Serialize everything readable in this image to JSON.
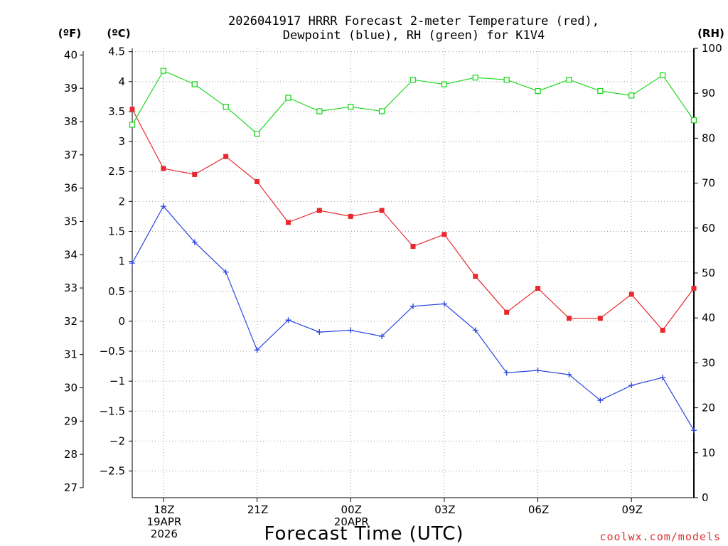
{
  "chart_data": {
    "type": "line",
    "title_line1": "2026041917 HRRR Forecast 2-meter Temperature (red),",
    "title_line2": "Dewpoint (blue), RH (green) for K1V4",
    "xlabel": "Forecast Time (UTC)",
    "credit": "coolwx.com/models",
    "units": {
      "left_f": "(ºF)",
      "left_c": "(ºC)",
      "right_rh": "(RH)"
    },
    "x_hours": [
      17,
      18,
      19,
      20,
      21,
      22,
      23,
      24,
      25,
      26,
      27,
      28,
      29,
      30,
      31,
      32,
      33,
      34,
      35
    ],
    "xlim": [
      17,
      35
    ],
    "x_ticks": [
      {
        "hour": 18,
        "lines": [
          "18Z",
          "19APR",
          "2026"
        ]
      },
      {
        "hour": 21,
        "lines": [
          "21Z"
        ]
      },
      {
        "hour": 24,
        "lines": [
          "00Z",
          "20APR"
        ]
      },
      {
        "hour": 27,
        "lines": [
          "03Z"
        ]
      },
      {
        "hour": 30,
        "lines": [
          "06Z"
        ]
      },
      {
        "hour": 33,
        "lines": [
          "09Z"
        ]
      }
    ],
    "ylim_c": [
      -2.9444,
      4.5556
    ],
    "y_ticks_c": [
      4.5,
      4,
      3.5,
      3,
      2.5,
      2,
      1.5,
      1,
      0.5,
      0,
      -0.5,
      -1,
      -1.5,
      -2,
      -2.5
    ],
    "y_ticks_f": [
      40,
      39,
      38,
      37,
      36,
      35,
      34,
      33,
      32,
      31,
      30,
      29,
      28,
      27
    ],
    "ylim_rh": [
      0,
      100
    ],
    "y_ticks_rh": [
      100,
      90,
      80,
      70,
      60,
      50,
      40,
      30,
      20,
      10,
      0
    ],
    "series": [
      {
        "name": "Temperature",
        "axis": "c",
        "color": "#e8282e",
        "marker": "filled-square",
        "values": [
          3.54,
          2.55,
          2.45,
          2.75,
          2.33,
          1.65,
          1.85,
          1.75,
          1.85,
          1.25,
          1.45,
          0.75,
          0.15,
          0.55,
          0.05,
          0.05,
          0.45,
          -0.15,
          0.55
        ]
      },
      {
        "name": "Dewpoint",
        "axis": "c",
        "color": "#2a45e0",
        "marker": "plus",
        "values": [
          0.97,
          1.92,
          1.32,
          0.82,
          -0.48,
          0.02,
          -0.18,
          -0.15,
          -0.25,
          0.25,
          0.29,
          -0.15,
          -0.86,
          -0.82,
          -0.89,
          -1.32,
          -1.07,
          -0.94,
          -1.82
        ]
      },
      {
        "name": "RH",
        "axis": "rh",
        "color": "#22d822",
        "marker": "open-square",
        "values": [
          83,
          95,
          92,
          87,
          81,
          89,
          86,
          87,
          86,
          93,
          92,
          93.5,
          93,
          90.5,
          93,
          90.5,
          89.5,
          94,
          84
        ]
      }
    ]
  }
}
